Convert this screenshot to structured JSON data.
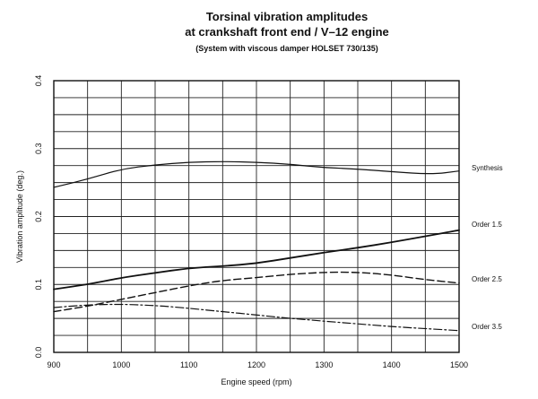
{
  "chart_data": {
    "type": "line",
    "title": "Torsinal vibration amplitudes",
    "title_line2": "at crankshaft front end / V–12 engine",
    "subtitle": "(System with viscous damper HOLSET 730/135)",
    "xlabel": "Engine speed (rpm)",
    "ylabel": "Vibration amplitude (deg.)",
    "xlim": [
      900,
      1500
    ],
    "ylim": [
      0,
      0.4
    ],
    "grid": true,
    "x_ticks": [
      "900",
      "1000",
      "1100",
      "1200",
      "1300",
      "1400",
      "1500"
    ],
    "y_ticks": [
      "0.0",
      "0.1",
      "0.2",
      "0.3",
      "0.4"
    ],
    "series": [
      {
        "name": "Synthesis",
        "line_style": "solid",
        "line_width": 1.2,
        "points": [
          [
            900,
            0.243
          ],
          [
            950,
            0.255
          ],
          [
            1000,
            0.27
          ],
          [
            1050,
            0.276
          ],
          [
            1100,
            0.28
          ],
          [
            1150,
            0.281
          ],
          [
            1200,
            0.28
          ],
          [
            1250,
            0.277
          ],
          [
            1300,
            0.272
          ],
          [
            1350,
            0.27
          ],
          [
            1400,
            0.266
          ],
          [
            1460,
            0.262
          ],
          [
            1500,
            0.267
          ]
        ]
      },
      {
        "name": "Order 1.5",
        "line_style": "solid",
        "line_width": 1.8,
        "points": [
          [
            900,
            0.093
          ],
          [
            950,
            0.1
          ],
          [
            1000,
            0.11
          ],
          [
            1050,
            0.117
          ],
          [
            1100,
            0.124
          ],
          [
            1150,
            0.127
          ],
          [
            1200,
            0.131
          ],
          [
            1250,
            0.139
          ],
          [
            1300,
            0.147
          ],
          [
            1350,
            0.154
          ],
          [
            1400,
            0.162
          ],
          [
            1450,
            0.171
          ],
          [
            1500,
            0.18
          ]
        ]
      },
      {
        "name": "Order 2.5",
        "line_style": "dashed",
        "line_width": 1.4,
        "points": [
          [
            900,
            0.06
          ],
          [
            950,
            0.068
          ],
          [
            1000,
            0.078
          ],
          [
            1050,
            0.088
          ],
          [
            1100,
            0.098
          ],
          [
            1150,
            0.106
          ],
          [
            1200,
            0.11
          ],
          [
            1250,
            0.115
          ],
          [
            1300,
            0.118
          ],
          [
            1350,
            0.118
          ],
          [
            1400,
            0.114
          ],
          [
            1450,
            0.107
          ],
          [
            1500,
            0.102
          ]
        ]
      },
      {
        "name": "Order 3.5",
        "line_style": "dashdot",
        "line_width": 1.2,
        "points": [
          [
            900,
            0.066
          ],
          [
            950,
            0.07
          ],
          [
            1000,
            0.071
          ],
          [
            1050,
            0.069
          ],
          [
            1100,
            0.065
          ],
          [
            1150,
            0.06
          ],
          [
            1200,
            0.055
          ],
          [
            1250,
            0.05
          ],
          [
            1300,
            0.046
          ],
          [
            1350,
            0.042
          ],
          [
            1400,
            0.038
          ],
          [
            1450,
            0.035
          ],
          [
            1500,
            0.032
          ]
        ]
      }
    ]
  },
  "colors": {
    "line": "#111111",
    "grid": "#222222",
    "background": "#ffffff"
  }
}
